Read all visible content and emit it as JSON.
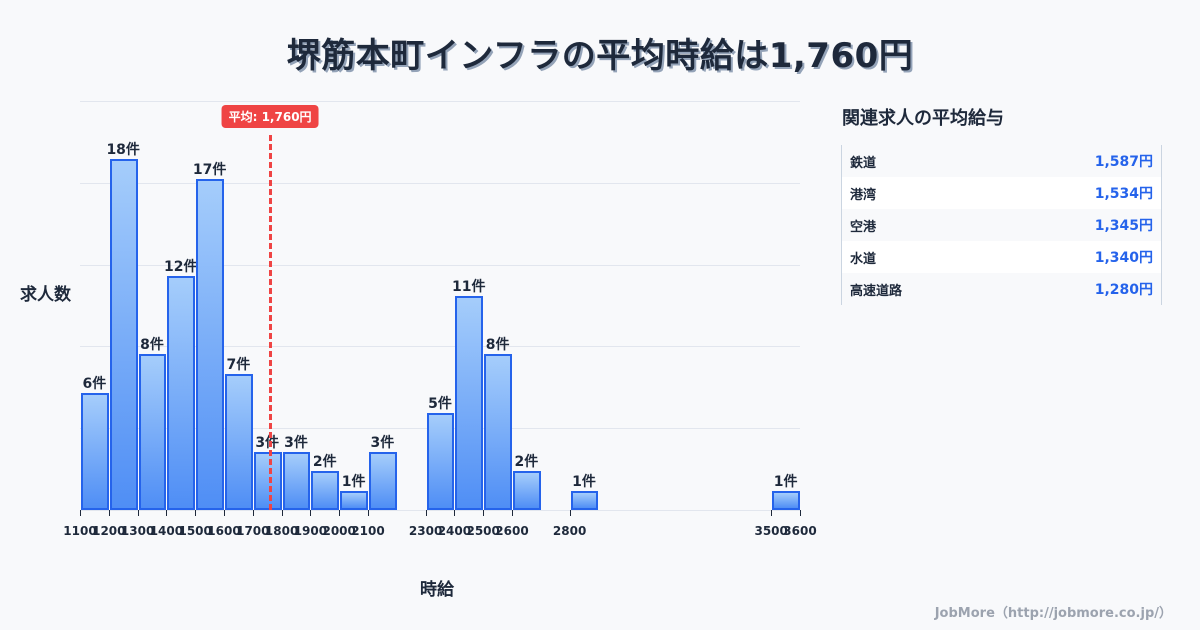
{
  "title": "堺筋本町インフラの平均時給は1,760円",
  "axis": {
    "ylabel": "求人数",
    "xlabel": "時給"
  },
  "average": {
    "label": "平均: 1,760円",
    "value": 1760,
    "color": "#ef4444"
  },
  "side_panel": {
    "title": "関連求人の平均給与",
    "rows": [
      {
        "name": "鉄道",
        "value": "1,587円"
      },
      {
        "name": "港湾",
        "value": "1,534円"
      },
      {
        "name": "空港",
        "value": "1,345円"
      },
      {
        "name": "水道",
        "value": "1,340円"
      },
      {
        "name": "高速道路",
        "value": "1,280円"
      }
    ]
  },
  "footer": "JobMore（http://jobmore.co.jp/）",
  "chart_data": {
    "type": "bar",
    "title": "堺筋本町インフラの平均時給は1,760円",
    "xlabel": "時給",
    "ylabel": "求人数",
    "bin_width": 100,
    "x_range": [
      1100,
      3600
    ],
    "ylim": [
      0,
      21
    ],
    "grid": true,
    "bar_color": "#2563eb",
    "categories": [
      "1100",
      "1200",
      "1300",
      "1400",
      "1500",
      "1600",
      "1700",
      "1800",
      "1900",
      "2000",
      "2100",
      "2300",
      "2400",
      "2500",
      "2600",
      "2800",
      "3500"
    ],
    "values": [
      6,
      18,
      8,
      12,
      17,
      7,
      3,
      3,
      2,
      1,
      3,
      5,
      11,
      8,
      2,
      1,
      1
    ],
    "labels": [
      "6件",
      "18件",
      "8件",
      "12件",
      "17件",
      "7件",
      "3件",
      "3件",
      "2件",
      "1件",
      "3件",
      "5件",
      "11件",
      "8件",
      "2件",
      "1件",
      "1件"
    ],
    "tick_labels": [
      "1100",
      "1200",
      "1300",
      "1400",
      "1500",
      "1600",
      "1700",
      "1800",
      "1900",
      "2000",
      "2100",
      "2300",
      "2400",
      "2500",
      "2600",
      "2800",
      "3500",
      "3600"
    ],
    "annotations": [
      {
        "type": "vline",
        "x": 1760,
        "label": "平均: 1,760円"
      }
    ]
  }
}
